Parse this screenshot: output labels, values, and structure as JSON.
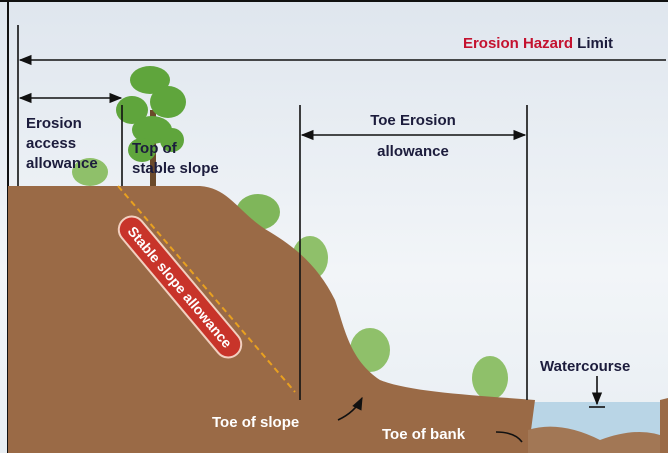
{
  "title": {
    "parts": [
      "Erosion Hazard",
      "Limit"
    ]
  },
  "labels": {
    "erosion_access": [
      "Erosion",
      "access",
      "allowance"
    ],
    "top_of_slope": [
      "Top of",
      "stable slope"
    ],
    "toe_erosion": [
      "Toe Erosion",
      "allowance"
    ],
    "stable_slope": "Stable slope allowance",
    "toe_of_slope": "Toe of slope",
    "toe_of_bank": "Toe of bank",
    "watercourse": "Watercourse"
  }
}
